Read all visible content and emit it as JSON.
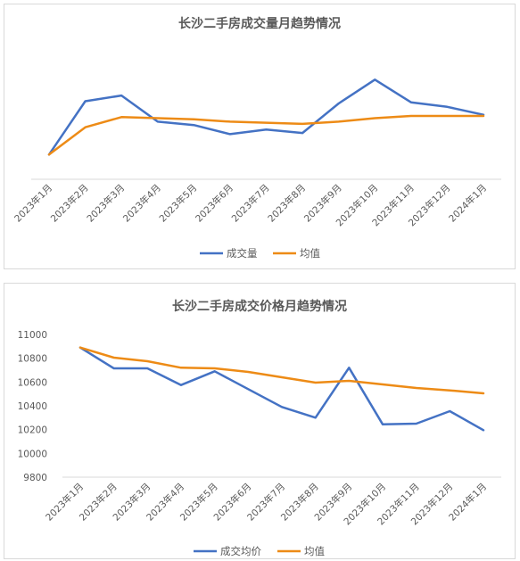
{
  "chart_data": [
    {
      "type": "line",
      "title": "长沙二手房成交量月趋势情况",
      "categories": [
        "2023年1月",
        "2023年2月",
        "2023年3月",
        "2023年4月",
        "2023年5月",
        "2023年6月",
        "2023年7月",
        "2023年8月",
        "2023年9月",
        "2023年10月",
        "2023年11月",
        "2023年12月",
        "2024年1月"
      ],
      "y_axis_visible": false,
      "grid": false,
      "legend_position": "bottom",
      "series": [
        {
          "name": "成交量",
          "color": "#4472C4",
          "values": [
            1,
            48,
            53,
            30,
            27,
            19,
            23,
            20,
            46,
            67,
            47,
            43,
            36
          ]
        },
        {
          "name": "均值",
          "color": "#ED8B16",
          "values": [
            1,
            25,
            34,
            33,
            32,
            30,
            29,
            28,
            30,
            33,
            35,
            35,
            35
          ]
        }
      ],
      "ylim": [
        -20,
        90
      ]
    },
    {
      "type": "line",
      "title": "长沙二手房成交价格月趋势情况",
      "categories": [
        "2023年1月",
        "2023年2月",
        "2023年3月",
        "2023年4月",
        "2023年5月",
        "2023年6月",
        "2023年7月",
        "2023年8月",
        "2023年9月",
        "2023年10月",
        "2023年11月",
        "2023年12月",
        "2024年1月"
      ],
      "y_ticks": [
        "11000",
        "10800",
        "10600",
        "10400",
        "10200",
        "10000",
        "9800"
      ],
      "ylim": [
        9800,
        11000
      ],
      "grid": false,
      "legend_position": "bottom",
      "series": [
        {
          "name": "成交均价",
          "color": "#4472C4",
          "values": [
            10890,
            10715,
            10715,
            10575,
            10690,
            10540,
            10390,
            10300,
            10720,
            10245,
            10250,
            10355,
            10195
          ]
        },
        {
          "name": "均值",
          "color": "#ED8B16",
          "values": [
            10890,
            10805,
            10775,
            10720,
            10715,
            10685,
            10640,
            10595,
            10610,
            10580,
            10550,
            10530,
            10505
          ]
        }
      ]
    }
  ]
}
